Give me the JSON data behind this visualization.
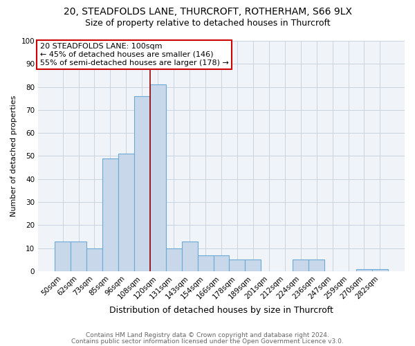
{
  "title1": "20, STEADFOLDS LANE, THURCROFT, ROTHERHAM, S66 9LX",
  "title2": "Size of property relative to detached houses in Thurcroft",
  "xlabel": "Distribution of detached houses by size in Thurcroft",
  "ylabel": "Number of detached properties",
  "bins": [
    "50sqm",
    "62sqm",
    "73sqm",
    "85sqm",
    "96sqm",
    "108sqm",
    "120sqm",
    "131sqm",
    "143sqm",
    "154sqm",
    "166sqm",
    "178sqm",
    "189sqm",
    "201sqm",
    "212sqm",
    "224sqm",
    "236sqm",
    "247sqm",
    "259sqm",
    "270sqm",
    "282sqm"
  ],
  "values": [
    13,
    13,
    10,
    49,
    51,
    76,
    81,
    10,
    13,
    7,
    7,
    5,
    5,
    0,
    0,
    5,
    5,
    0,
    0,
    1,
    1
  ],
  "bar_color": "#c8d8ea",
  "bar_edge_color": "#6aaad4",
  "red_line_x": 5.5,
  "annotation_text": "20 STEADFOLDS LANE: 100sqm\n← 45% of detached houses are smaller (146)\n55% of semi-detached houses are larger (178) →",
  "annotation_box_color": "white",
  "annotation_box_edge": "#cc0000",
  "footer1": "Contains HM Land Registry data © Crown copyright and database right 2024.",
  "footer2": "Contains public sector information licensed under the Open Government Licence v3.0.",
  "ylim": [
    0,
    100
  ],
  "yticks": [
    0,
    10,
    20,
    30,
    40,
    50,
    60,
    70,
    80,
    90,
    100
  ],
  "title1_fontsize": 10,
  "title2_fontsize": 9,
  "xlabel_fontsize": 9,
  "ylabel_fontsize": 8,
  "tick_fontsize": 7.5,
  "annotation_fontsize": 8,
  "footer_fontsize": 6.5
}
